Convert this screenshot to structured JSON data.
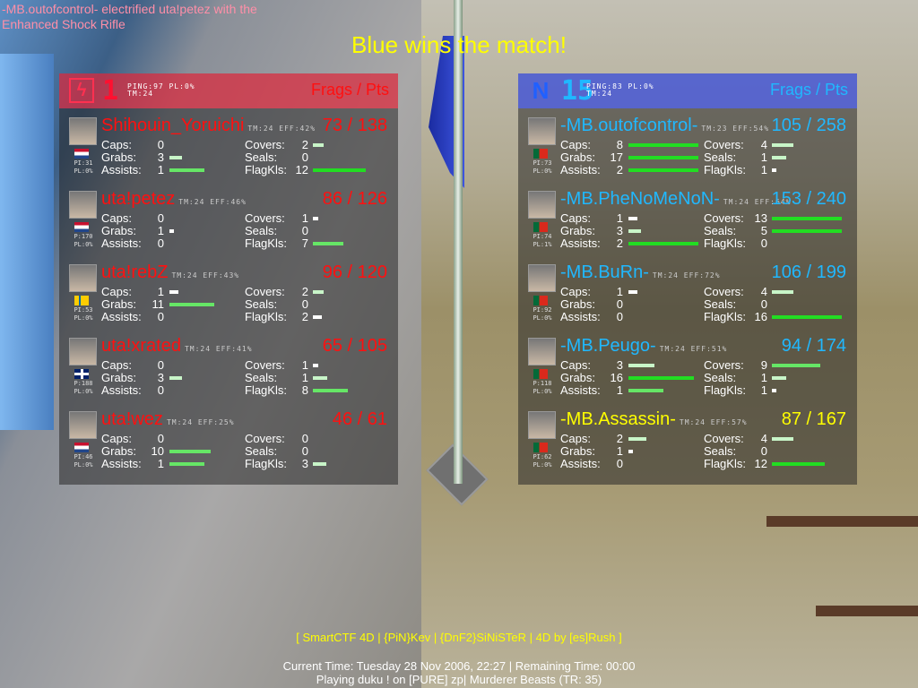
{
  "kill_message": "-MB.outofcontrol- electrified uta!petez with the Enhanced Shock Rifle",
  "winner": "Blue wins the match!",
  "stat_labels": {
    "caps": "Caps:",
    "grabs": "Grabs:",
    "assists": "Assists:",
    "covers": "Covers:",
    "seals": "Seals:",
    "flagkills": "FlagKls:"
  },
  "colors": {
    "red": "#ff1010",
    "blue": "#20b8ff",
    "highlight": "#ffff00",
    "bar_white": "#ffffff",
    "bar_light": "#c8f5c8",
    "bar_mid": "#66e666",
    "bar_high": "#22dd22"
  },
  "teams": [
    {
      "id": "red",
      "logo_icon": "red-team-lightning-icon",
      "logo_glyph": "ϟ",
      "score": "1",
      "info_line1": "PING:97 PL:0%",
      "info_line2": "TM:24",
      "header": "Frags / Pts",
      "players": [
        {
          "name": "Shihouin_Yoruichi",
          "tm_eff": "TM:24 EFF:42%",
          "score": "73 / 138",
          "flag": "nl",
          "ping": "PI:31",
          "pl": "PL:0%",
          "caps": 0,
          "grabs": 3,
          "assists": 1,
          "covers": 2,
          "seals": 0,
          "flagkills": 12
        },
        {
          "name": "uta!petez",
          "tm_eff": "TM:24 EFF:46%",
          "score": "86 / 126",
          "flag": "nl",
          "ping": "P:170",
          "pl": "PL:0%",
          "caps": 0,
          "grabs": 1,
          "assists": 0,
          "covers": 1,
          "seals": 0,
          "flagkills": 7
        },
        {
          "name": "uta!rebZ",
          "tm_eff": "TM:24 EFF:43%",
          "score": "96 / 120",
          "flag": "se",
          "ping": "PI:53",
          "pl": "PL:0%",
          "caps": 1,
          "grabs": 11,
          "assists": 0,
          "covers": 2,
          "seals": 0,
          "flagkills": 2
        },
        {
          "name": "uta!xrated",
          "tm_eff": "TM:24 EFF:41%",
          "score": "65 / 105",
          "flag": "gb",
          "ping": "P:188",
          "pl": "PL:0%",
          "caps": 0,
          "grabs": 3,
          "assists": 0,
          "covers": 1,
          "seals": 1,
          "flagkills": 8
        },
        {
          "name": "uta!wez",
          "tm_eff": "TM:24 EFF:25%",
          "score": "46 / 61",
          "flag": "nl",
          "ping": "PI:46",
          "pl": "PL:0%",
          "caps": 0,
          "grabs": 10,
          "assists": 1,
          "covers": 0,
          "seals": 0,
          "flagkills": 3
        }
      ]
    },
    {
      "id": "blue",
      "logo_icon": "blue-team-n-icon",
      "logo_glyph": "N",
      "score": "15",
      "info_line1": "PING:83 PL:0%",
      "info_line2": "TM:24",
      "header": "Frags / Pts",
      "players": [
        {
          "name": "-MB.outofcontrol-",
          "tm_eff": "TM:23 EFF:54%",
          "score": "105 / 258",
          "flag": "pt",
          "ping": "PI:73",
          "pl": "PL:0%",
          "caps": 8,
          "grabs": 17,
          "assists": 2,
          "covers": 4,
          "seals": 1,
          "flagkills": 1
        },
        {
          "name": "-MB.PheNoMeNoN-",
          "tm_eff": "TM:24 EFF:64%",
          "score": "153 / 240",
          "flag": "pt",
          "ping": "PI:74",
          "pl": "PL:1%",
          "caps": 1,
          "grabs": 3,
          "assists": 2,
          "covers": 13,
          "seals": 5,
          "flagkills": 0
        },
        {
          "name": "-MB.BuRn-",
          "tm_eff": "TM:24 EFF:72%",
          "score": "106 / 199",
          "flag": "pt",
          "ping": "PI:92",
          "pl": "PL:0%",
          "caps": 1,
          "grabs": 0,
          "assists": 0,
          "covers": 4,
          "seals": 0,
          "flagkills": 16
        },
        {
          "name": "-MB.Peugo-",
          "tm_eff": "TM:24 EFF:51%",
          "score": "94 / 174",
          "flag": "pt",
          "ping": "P:118",
          "pl": "PL:0%",
          "caps": 3,
          "grabs": 16,
          "assists": 1,
          "covers": 9,
          "seals": 1,
          "flagkills": 1
        },
        {
          "name": "-MB.Assassin-",
          "tm_eff": "TM:24 EFF:57%",
          "score": "87 / 167",
          "flag": "pt",
          "ping": "PI:62",
          "pl": "PL:0%",
          "caps": 2,
          "grabs": 1,
          "assists": 0,
          "covers": 4,
          "seals": 0,
          "flagkills": 12,
          "highlight": true
        }
      ]
    }
  ],
  "footer": {
    "credits": "[ SmartCTF 4D | {PiN}Kev | {DnF2}SiNiSTeR | 4D by [es]Rush ]",
    "time": "Current Time: Tuesday 28 Nov 2006, 22:27 | Remaining Time: 00:00",
    "server": "Playing duku ! on [PURE] zp| Murderer Beasts (TR: 35)"
  }
}
